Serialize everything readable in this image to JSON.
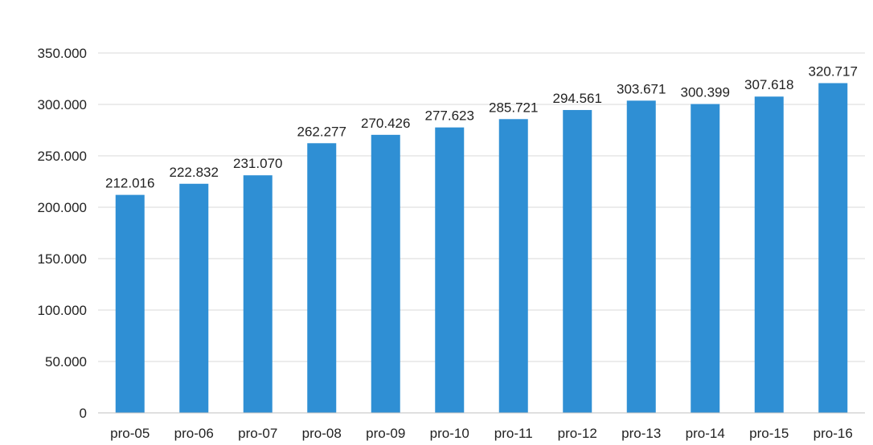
{
  "chart_data": {
    "type": "bar",
    "title": "",
    "xlabel": "",
    "ylabel": "",
    "categories": [
      "pro-05",
      "pro-06",
      "pro-07",
      "pro-08",
      "pro-09",
      "pro-10",
      "pro-11",
      "pro-12",
      "pro-13",
      "pro-14",
      "pro-15",
      "pro-16"
    ],
    "values": [
      212016,
      222832,
      231070,
      262277,
      270426,
      277623,
      285721,
      294561,
      303671,
      300399,
      307618,
      320717
    ],
    "data_labels": [
      "212.016",
      "222.832",
      "231.070",
      "262.277",
      "270.426",
      "277.623",
      "285.721",
      "294.561",
      "303.671",
      "300.399",
      "307.618",
      "320.717"
    ],
    "ylim": [
      0,
      350000
    ],
    "yticks": [
      0,
      50000,
      100000,
      150000,
      200000,
      250000,
      300000,
      350000
    ],
    "ytick_labels": [
      "0",
      "50.000",
      "100.000",
      "150.000",
      "200.000",
      "250.000",
      "300.000",
      "350.000"
    ],
    "grid": true,
    "legend": "none",
    "colors": {
      "bar": "#2f8fd4",
      "grid": "#d9d9d9",
      "axis": "#bfbfbf"
    }
  }
}
